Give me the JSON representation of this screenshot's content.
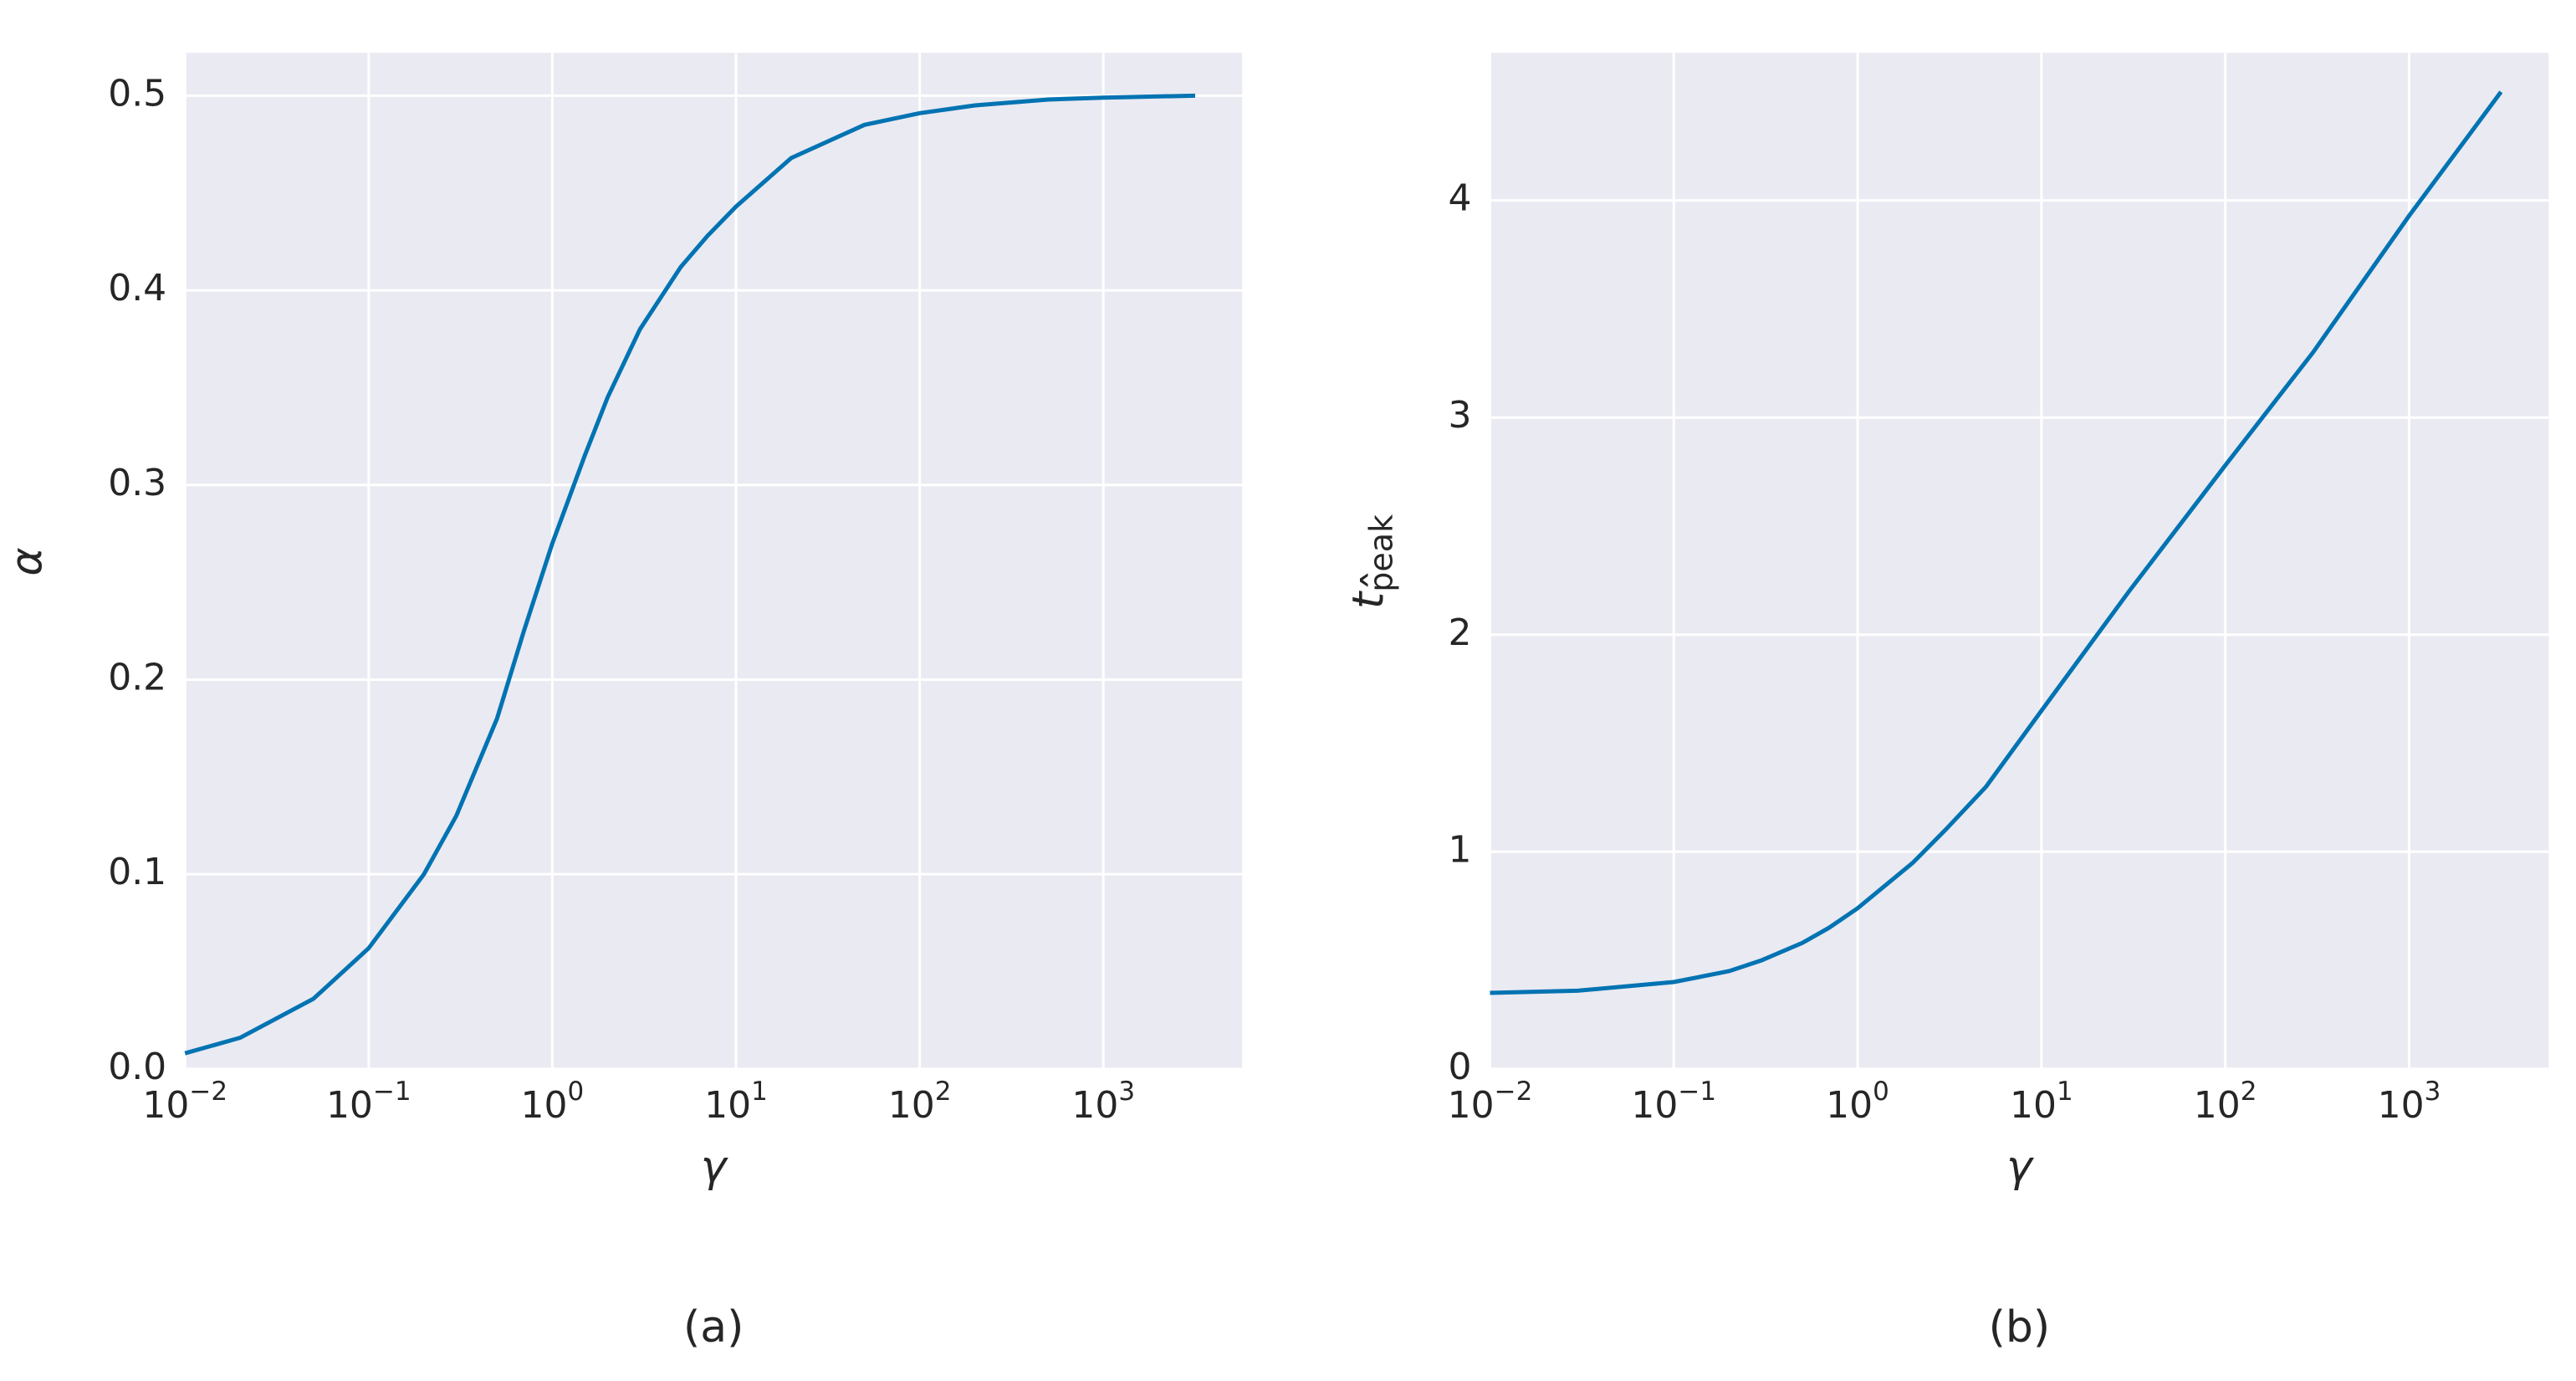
{
  "chart_data": [
    {
      "type": "line",
      "x_label": "γ",
      "y_label": "α",
      "caption": "(a)",
      "x_scale": "log",
      "grid": true,
      "background": "#eaeaf2",
      "xlim": [
        0.01,
        5700
      ],
      "ylim": [
        0,
        0.522
      ],
      "xticks": [
        {
          "value": 0.01,
          "label": "10",
          "exponent": "−2"
        },
        {
          "value": 0.1,
          "label": "10",
          "exponent": "−1"
        },
        {
          "value": 1,
          "label": "10",
          "exponent": "0"
        },
        {
          "value": 10,
          "label": "10",
          "exponent": "1"
        },
        {
          "value": 100,
          "label": "10",
          "exponent": "2"
        },
        {
          "value": 1000,
          "label": "10",
          "exponent": "3"
        }
      ],
      "yticks": [
        {
          "value": 0,
          "label": "0.0"
        },
        0.1,
        0.2,
        0.3,
        0.4,
        0.5
      ],
      "x": [
        0.01,
        0.02,
        0.05,
        0.1,
        0.2,
        0.3,
        0.5,
        0.7,
        1,
        1.5,
        2,
        3,
        5,
        7,
        10,
        20,
        50,
        100,
        200,
        500,
        1000,
        3162
      ],
      "series": [
        {
          "name": "α",
          "color": "#0173b2",
          "values": [
            0.008,
            0.016,
            0.036,
            0.062,
            0.1,
            0.13,
            0.18,
            0.225,
            0.27,
            0.315,
            0.345,
            0.38,
            0.412,
            0.428,
            0.443,
            0.468,
            0.485,
            0.491,
            0.495,
            0.498,
            0.499,
            0.5
          ]
        }
      ]
    },
    {
      "type": "line",
      "x_label": "γ",
      "y_label": "t",
      "y_label_sub": "peak",
      "y_label_accent": "ˆ",
      "caption": "(b)",
      "x_scale": "log",
      "grid": true,
      "background": "#eaeaf2",
      "xlim": [
        0.01,
        5750
      ],
      "ylim": [
        0,
        4.68
      ],
      "xticks": [
        {
          "value": 0.01,
          "label": "10",
          "exponent": "−2"
        },
        {
          "value": 0.1,
          "label": "10",
          "exponent": "−1"
        },
        {
          "value": 1,
          "label": "10",
          "exponent": "0"
        },
        {
          "value": 10,
          "label": "10",
          "exponent": "1"
        },
        {
          "value": 100,
          "label": "10",
          "exponent": "2"
        },
        {
          "value": 1000,
          "label": "10",
          "exponent": "3"
        }
      ],
      "yticks": [
        0,
        1,
        2,
        3,
        4
      ],
      "x": [
        0.01,
        0.03,
        0.1,
        0.2,
        0.3,
        0.5,
        0.7,
        1,
        2,
        3,
        5,
        10,
        30,
        100,
        300,
        1000,
        3162
      ],
      "series": [
        {
          "name": "t_peak",
          "color": "#0173b2",
          "values": [
            0.35,
            0.36,
            0.4,
            0.45,
            0.5,
            0.58,
            0.65,
            0.74,
            0.95,
            1.1,
            1.3,
            1.65,
            2.2,
            2.78,
            3.3,
            3.93,
            4.5
          ]
        }
      ]
    }
  ]
}
